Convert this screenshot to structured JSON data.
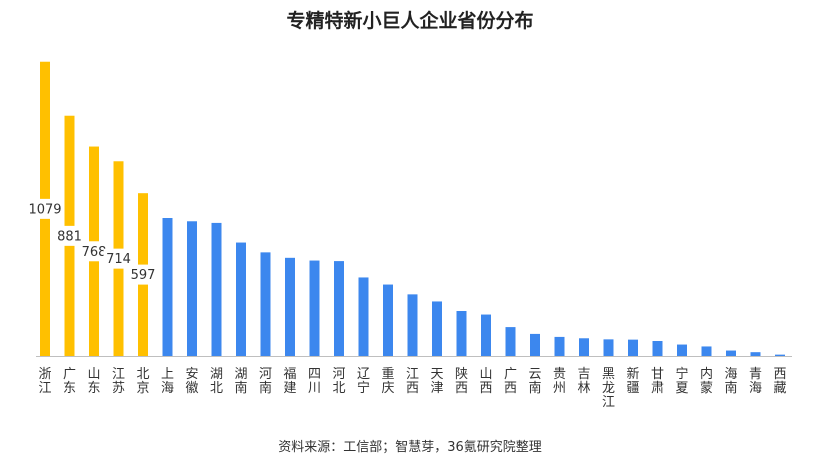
{
  "chart_data": {
    "type": "bar",
    "title": "专精特新小巨人企业省份分布",
    "xlabel": "",
    "ylabel": "",
    "ylim": [
      0,
      1100
    ],
    "grid": false,
    "legend": "none",
    "categories": [
      "浙江",
      "广东",
      "山东",
      "江苏",
      "北京",
      "上海",
      "安徽",
      "湖北",
      "湖南",
      "河南",
      "福建",
      "四川",
      "河北",
      "辽宁",
      "重庆",
      "江西",
      "天津",
      "陕西",
      "山西",
      "广西",
      "云南",
      "贵州",
      "吉林",
      "黑龙江",
      "新疆",
      "甘肃",
      "宁夏",
      "内蒙",
      "海南",
      "青海",
      "西藏"
    ],
    "values": [
      1079,
      881,
      768,
      714,
      597,
      506,
      494,
      488,
      416,
      380,
      360,
      350,
      348,
      288,
      262,
      226,
      200,
      165,
      152,
      106,
      81,
      70,
      65,
      61,
      60,
      55,
      42,
      35,
      20,
      14,
      5
    ],
    "labeled_values": [
      "1079",
      "881",
      "768",
      "714",
      "597"
    ],
    "colors": {
      "top5": "#FFC000",
      "others": "#3C87EE",
      "axis": "#BFBFBF",
      "label": "#333333"
    }
  },
  "source": "资料来源：工信部；智慧芽，36氪研究院整理"
}
